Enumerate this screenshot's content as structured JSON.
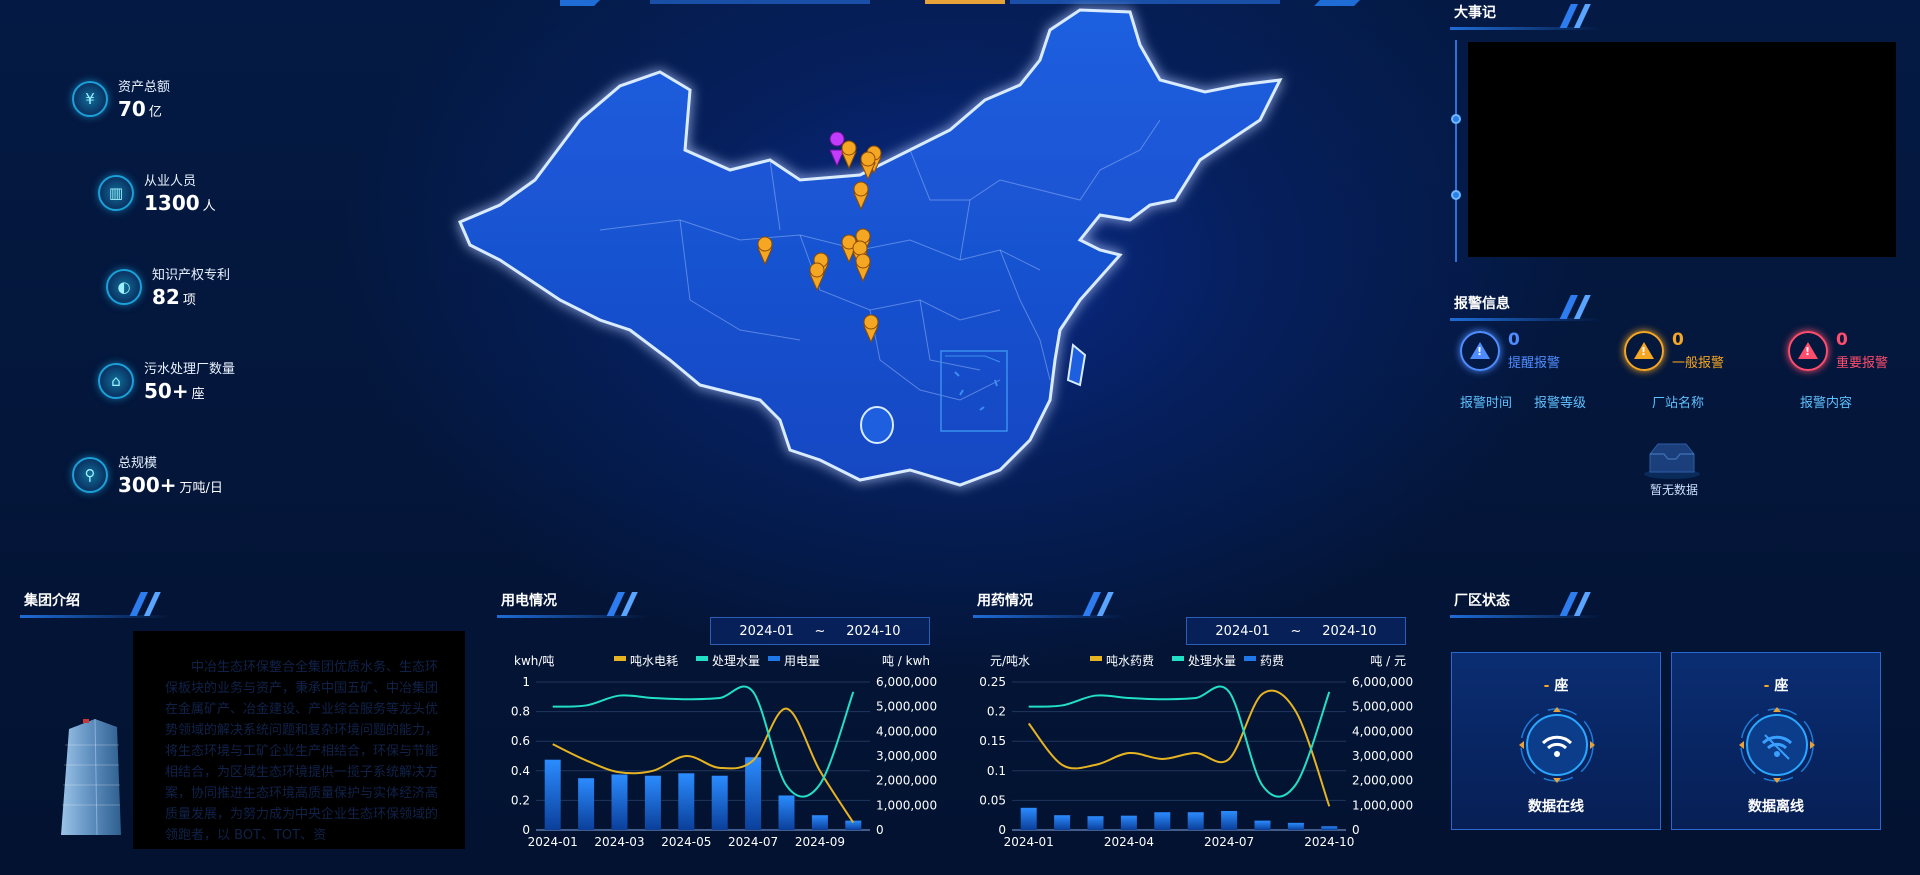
{
  "stats": [
    {
      "label": "资产总额",
      "value": "70",
      "unit": "亿",
      "icon": "yuan-icon"
    },
    {
      "label": "从业人员",
      "value": "1300",
      "unit": "人",
      "icon": "building-icon"
    },
    {
      "label": "知识产权专利",
      "value": "82",
      "unit": "项",
      "icon": "water-drop-icon"
    },
    {
      "label": "污水处理厂数量",
      "value": "50+",
      "unit": "座",
      "icon": "factory-icon"
    },
    {
      "label": "总规模",
      "value": "300+",
      "unit": "万吨/日",
      "icon": "faucet-icon"
    }
  ],
  "events": {
    "title": "大事记"
  },
  "alarms": {
    "title": "报警信息",
    "items": [
      {
        "count": "0",
        "name": "提醒报警",
        "color": "#4f8dff"
      },
      {
        "count": "0",
        "name": "一般报警",
        "color": "#f5a623"
      },
      {
        "count": "0",
        "name": "重要报警",
        "color": "#ff4d6d"
      }
    ],
    "columns": [
      "报警时间",
      "报警等级",
      "厂站名称",
      "报警内容"
    ],
    "empty": "暂无数据"
  },
  "intro": {
    "title": "集团介绍",
    "text": "中冶生态环保整合全集团优质水务、生态环保板块的业务与资产，秉承中国五矿、中冶集团在金属矿产、冶金建设、产业综合服务等龙头优势领域的解决系统问题和复杂环境问题的能力，将生态环境与工矿企业生产相结合，环保与节能相结合，为区域生态环境提供一揽子系统解决方案，协同推进生态环境高质量保护与实体经济高质量发展，为努力成为中央企业生态环保领域的领跑者，以 BOT、TOT、资"
  },
  "power": {
    "title": "用电情况",
    "date_start": "2024-01",
    "date_sep": "~",
    "date_end": "2024-10",
    "left_unit": "kwh/吨",
    "right_unit": "吨 /  kwh",
    "legend": [
      "吨水电耗",
      "处理水量",
      "用电量"
    ]
  },
  "chem": {
    "title": "用药情况",
    "date_start": "2024-01",
    "date_sep": "~",
    "date_end": "2024-10",
    "left_unit": "元/吨水",
    "right_unit": "吨 /  元",
    "legend": [
      "吨水药费",
      "处理水量",
      "药费"
    ]
  },
  "factory": {
    "title": "厂区状态",
    "unit": "座",
    "dash": "-",
    "items": [
      {
        "name": "数据在线",
        "icon": "wifi-icon"
      },
      {
        "name": "数据离线",
        "icon": "wifi-off-icon"
      }
    ]
  },
  "colors": {
    "line_orange": "#e6b422",
    "line_cyan": "#22e0c8",
    "bar_blue": "#1f78e8"
  },
  "chart_data": [
    {
      "type": "bar",
      "title": "用电情况",
      "categories": [
        "2024-01",
        "2024-02",
        "2024-03",
        "2024-04",
        "2024-05",
        "2024-06",
        "2024-07",
        "2024-08",
        "2024-09",
        "2024-10"
      ],
      "x_tick_labels": [
        "2024-01",
        "2024-03",
        "2024-05",
        "2024-07",
        "2024-09"
      ],
      "left_ticks": [
        "0",
        "0.2",
        "0.4",
        "0.6",
        "0.8",
        "1"
      ],
      "right_ticks": [
        "0",
        "1,000,000",
        "2,000,000",
        "3,000,000",
        "4,000,000",
        "5,000,000",
        "6,000,000"
      ],
      "ylim_left": [
        0,
        1
      ],
      "ylim_right": [
        0,
        6000000
      ],
      "series": [
        {
          "name": "吨水电耗",
          "type": "line",
          "axis": "left",
          "values": [
            0.58,
            0.47,
            0.39,
            0.4,
            0.5,
            0.42,
            0.47,
            0.82,
            0.4,
            0.05
          ]
        },
        {
          "name": "处理水量",
          "type": "line",
          "axis": "right",
          "values": [
            5000000,
            5050000,
            5450000,
            5350000,
            5300000,
            5350000,
            5600000,
            1800000,
            1850000,
            5600000
          ]
        },
        {
          "name": "用电量",
          "type": "bar",
          "axis": "right",
          "values": [
            2850000,
            2100000,
            2250000,
            2200000,
            2300000,
            2200000,
            2950000,
            1400000,
            600000,
            380000
          ]
        }
      ]
    },
    {
      "type": "bar",
      "title": "用药情况",
      "categories": [
        "2024-01",
        "2024-02",
        "2024-03",
        "2024-04",
        "2024-05",
        "2024-06",
        "2024-07",
        "2024-08",
        "2024-09",
        "2024-10"
      ],
      "x_tick_labels": [
        "2024-01",
        "2024-04",
        "2024-07",
        "2024-10"
      ],
      "left_ticks": [
        "0",
        "0.05",
        "0.1",
        "0.15",
        "0.2",
        "0.25"
      ],
      "right_ticks": [
        "0",
        "1,000,000",
        "2,000,000",
        "3,000,000",
        "4,000,000",
        "5,000,000",
        "6,000,000"
      ],
      "ylim_left": [
        0,
        0.25
      ],
      "ylim_right": [
        0,
        6000000
      ],
      "series": [
        {
          "name": "吨水药费",
          "type": "line",
          "axis": "left",
          "values": [
            0.18,
            0.11,
            0.11,
            0.13,
            0.12,
            0.13,
            0.12,
            0.23,
            0.2,
            0.04
          ]
        },
        {
          "name": "处理水量",
          "type": "line",
          "axis": "right",
          "values": [
            5000000,
            5050000,
            5450000,
            5350000,
            5300000,
            5350000,
            5600000,
            1800000,
            1850000,
            5600000
          ]
        },
        {
          "name": "药费",
          "type": "bar",
          "axis": "right",
          "values": [
            900000,
            600000,
            560000,
            580000,
            720000,
            720000,
            770000,
            380000,
            290000,
            150000
          ]
        }
      ]
    }
  ]
}
